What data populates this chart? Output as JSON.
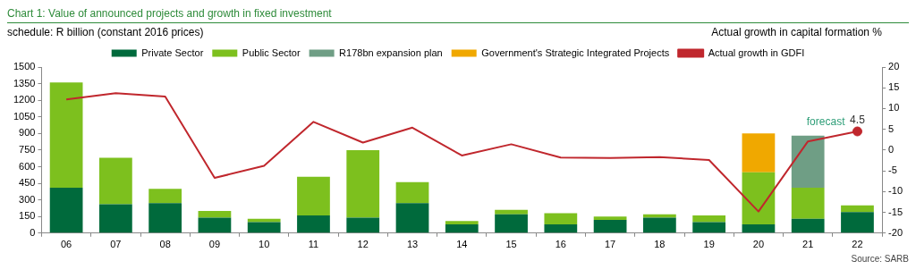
{
  "chart_data": {
    "type": "bar",
    "title": "Chart 1: Value of announced projects and growth in fixed investment",
    "ylabel": "schedule: R billion (constant 2016 prices)",
    "y2label": "Actual growth in capital formation %",
    "categories": [
      "06",
      "07",
      "08",
      "09",
      "10",
      "11",
      "12",
      "13",
      "14",
      "15",
      "16",
      "17",
      "18",
      "19",
      "20",
      "21",
      "22"
    ],
    "series": [
      {
        "name": "Private Sector",
        "color": "#006a3c",
        "values": [
          410,
          260,
          270,
          140,
          100,
          160,
          140,
          270,
          80,
          170,
          80,
          120,
          140,
          100,
          80,
          130,
          190
        ]
      },
      {
        "name": "Public Sector",
        "color": "#7dc01e",
        "values": [
          950,
          420,
          130,
          60,
          30,
          350,
          610,
          190,
          30,
          40,
          100,
          30,
          30,
          60,
          470,
          280,
          60
        ]
      },
      {
        "name": "R178bn expansion plan",
        "color": "#6f9e85",
        "values": [
          null,
          null,
          null,
          null,
          null,
          null,
          null,
          null,
          null,
          null,
          null,
          null,
          null,
          null,
          null,
          470,
          null
        ]
      },
      {
        "name": "Government's Strategic Integrated Projects",
        "color": "#f0a800",
        "values": [
          null,
          null,
          null,
          null,
          null,
          null,
          null,
          null,
          null,
          null,
          null,
          null,
          null,
          null,
          350,
          null,
          null
        ]
      },
      {
        "name": "Actual growth in GDFI",
        "type": "line",
        "axis": "y2",
        "color": "#c0272d",
        "marker": "none",
        "values": [
          12.2,
          13.7,
          12.9,
          -6.7,
          -3.8,
          6.8,
          1.8,
          5.4,
          -1.3,
          1.4,
          -1.8,
          -1.9,
          -1.7,
          -2.4,
          -14.8,
          2.1,
          4.5
        ]
      },
      {
        "type": "scatter",
        "axis": "y2",
        "color": "#c0272d",
        "marker": "circle",
        "x": [
          "22"
        ],
        "values": [
          4.5
        ],
        "value_labels": [
          "4.5"
        ]
      }
    ],
    "stacked": true,
    "ylim": [
      0,
      1500
    ],
    "yticks": [
      0,
      150,
      300,
      450,
      600,
      750,
      900,
      1050,
      1200,
      1350,
      1500
    ],
    "y2lim": [
      -20,
      20
    ],
    "y2ticks": [
      -20,
      -15,
      -10,
      -5,
      0,
      5,
      10,
      15,
      20
    ],
    "grid": false,
    "legend": "top",
    "annotations": [
      "forecast",
      "Source: SARB"
    ]
  }
}
